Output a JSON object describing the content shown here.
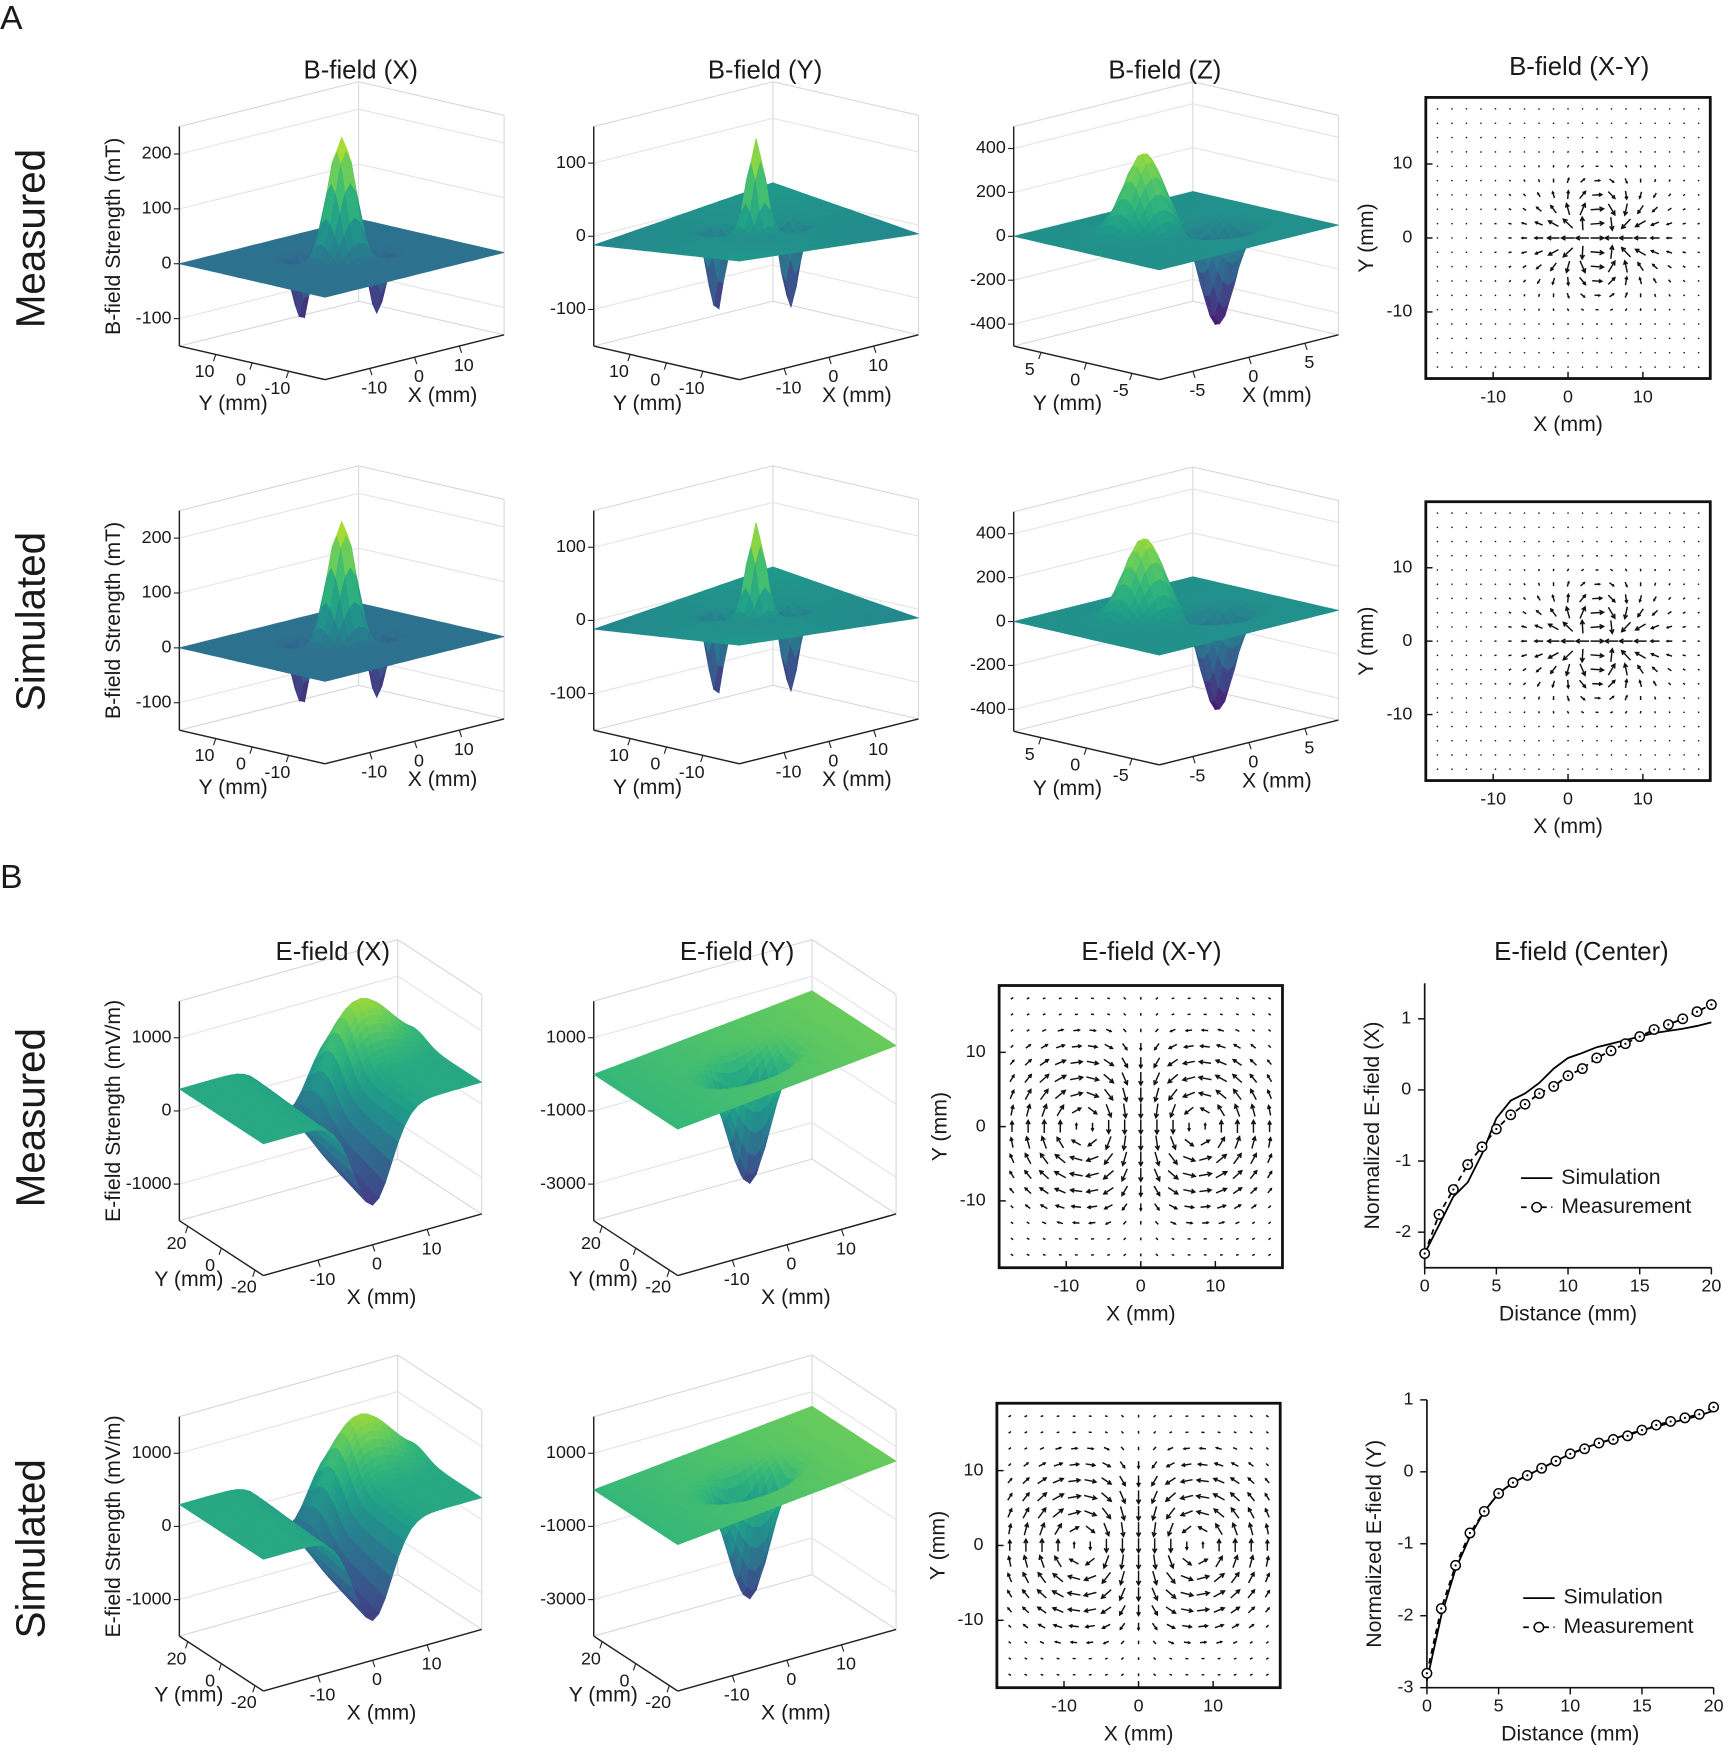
{
  "sections": [
    {
      "label": "A",
      "rows": [
        "Measured",
        "Simulated"
      ]
    },
    {
      "label": "B",
      "rows": [
        "Measured",
        "Simulated"
      ]
    }
  ],
  "chart_data": [
    {
      "type": "surface",
      "title": "B-field (X)",
      "zlabel": "B-field Strength (mT)",
      "zlim": [
        -150,
        250
      ],
      "zticks": [
        -100,
        0,
        100,
        200
      ],
      "xlabel": "X (mm)",
      "xlim": [
        -20,
        20
      ],
      "xticks": [
        -10,
        0,
        10
      ],
      "ylabel": "Y (mm)",
      "ylim": [
        -20,
        20
      ],
      "yticks": [
        -10,
        0,
        10
      ]
    },
    {
      "type": "surface",
      "title": "B-field (Y)",
      "zlim": [
        -150,
        150
      ],
      "zticks": [
        -100,
        0,
        100
      ],
      "xlabel": "X (mm)",
      "xlim": [
        -20,
        20
      ],
      "xticks": [
        -10,
        0,
        10
      ],
      "ylabel": "Y (mm)",
      "ylim": [
        -20,
        20
      ],
      "yticks": [
        -10,
        0,
        10
      ]
    },
    {
      "type": "surface",
      "title": "B-field (Z)",
      "zlim": [
        -500,
        500
      ],
      "zticks": [
        -400,
        -200,
        0,
        200,
        400
      ],
      "xlabel": "X (mm)",
      "xlim": [
        -8,
        8
      ],
      "xticks": [
        -5,
        0,
        5
      ],
      "ylabel": "Y (mm)",
      "ylim": [
        -8,
        8
      ],
      "yticks": [
        -5,
        0,
        5
      ]
    },
    {
      "type": "quiver",
      "title": "B-field (X-Y)",
      "xlabel": "X (mm)",
      "ylabel": "Y (mm)",
      "xlim": [
        -19,
        19
      ],
      "ylim": [
        -19,
        19
      ],
      "xticks": [
        -10,
        0,
        10
      ],
      "yticks": [
        -10,
        0,
        10
      ]
    },
    {
      "type": "surface",
      "zlabel": "B-field Strength (mT)",
      "zlim": [
        -150,
        250
      ],
      "zticks": [
        -100,
        0,
        100,
        200
      ],
      "xlabel": "X (mm)",
      "xlim": [
        -20,
        20
      ],
      "xticks": [
        -10,
        0,
        10
      ],
      "ylabel": "Y (mm)",
      "ylim": [
        -20,
        20
      ],
      "yticks": [
        -10,
        0,
        10
      ]
    },
    {
      "type": "surface",
      "zlim": [
        -150,
        150
      ],
      "zticks": [
        -100,
        0,
        100
      ],
      "xlabel": "X (mm)",
      "xlim": [
        -20,
        20
      ],
      "xticks": [
        -10,
        0,
        10
      ],
      "ylabel": "Y (mm)",
      "ylim": [
        -20,
        20
      ],
      "yticks": [
        -10,
        0,
        10
      ]
    },
    {
      "type": "surface",
      "zlim": [
        -500,
        500
      ],
      "zticks": [
        -400,
        -200,
        0,
        200,
        400
      ],
      "xlabel": "X (mm)",
      "xlim": [
        -8,
        8
      ],
      "xticks": [
        -5,
        0,
        5
      ],
      "ylabel": "Y (mm)",
      "ylim": [
        -8,
        8
      ],
      "yticks": [
        -5,
        0,
        5
      ]
    },
    {
      "type": "quiver",
      "xlabel": "X (mm)",
      "ylabel": "Y (mm)",
      "xlim": [
        -19,
        19
      ],
      "ylim": [
        -19,
        19
      ],
      "xticks": [
        -10,
        0,
        10
      ],
      "yticks": [
        -10,
        0,
        10
      ]
    },
    {
      "type": "surface",
      "title": "E-field (X)",
      "zlabel": "E-field Strength (mV/m)",
      "zlim": [
        -1500,
        1500
      ],
      "zticks": [
        -1000,
        0,
        1000
      ],
      "xlabel": "X (mm)",
      "xlim": [
        -20,
        20
      ],
      "xticks": [
        -10,
        0,
        10
      ],
      "ylabel": "Y (mm)",
      "ylim": [
        -25,
        25
      ],
      "yticks": [
        -20,
        0,
        20
      ]
    },
    {
      "type": "surface",
      "title": "E-field (Y)",
      "zlim": [
        -4000,
        2000
      ],
      "zticks": [
        -3000,
        -1000,
        1000
      ],
      "xlabel": "X (mm)",
      "xlim": [
        -20,
        20
      ],
      "xticks": [
        -10,
        0,
        10
      ],
      "ylabel": "Y (mm)",
      "ylim": [
        -25,
        25
      ],
      "yticks": [
        -20,
        0,
        20
      ]
    },
    {
      "type": "quiver",
      "title": "E-field (X-Y)",
      "xlabel": "X (mm)",
      "ylabel": "Y (mm)",
      "xlim": [
        -19,
        19
      ],
      "ylim": [
        -19,
        19
      ],
      "xticks": [
        -10,
        0,
        10
      ],
      "yticks": [
        -10,
        0,
        10
      ]
    },
    {
      "type": "line",
      "title": "E-field (Center)",
      "xlabel": "Distance (mm)",
      "ylabel": "Normalized E-field (X)",
      "x": [
        0,
        1,
        2,
        3,
        4,
        5,
        6,
        7,
        8,
        9,
        10,
        11,
        12,
        13,
        14,
        15,
        16,
        17,
        18,
        19,
        20
      ],
      "xlim": [
        0,
        20
      ],
      "ylim": [
        -2.5,
        1.5
      ],
      "xticks": [
        0,
        5,
        10,
        15,
        20
      ],
      "yticks": [
        -2,
        -1,
        0,
        1
      ],
      "legend": "lower right",
      "series": [
        {
          "name": "Simulation",
          "color": "#000000",
          "style": "solid",
          "values": [
            -2.3,
            -1.9,
            -1.5,
            -1.3,
            -0.9,
            -0.4,
            -0.15,
            -0.05,
            0.1,
            0.3,
            0.45,
            0.52,
            0.6,
            0.65,
            0.7,
            0.75,
            0.8,
            0.83,
            0.86,
            0.9,
            0.95
          ]
        },
        {
          "name": "Measurement",
          "color": "#000000",
          "style": "dashed",
          "marker": "circle",
          "values": [
            -2.3,
            -1.75,
            -1.4,
            -1.05,
            -0.8,
            -0.55,
            -0.35,
            -0.2,
            -0.05,
            0.05,
            0.2,
            0.3,
            0.45,
            0.55,
            0.65,
            0.75,
            0.85,
            0.92,
            1.0,
            1.1,
            1.2
          ]
        }
      ]
    },
    {
      "type": "surface",
      "zlabel": "E-field Strength (mV/m)",
      "zlim": [
        -1500,
        1500
      ],
      "zticks": [
        -1000,
        0,
        1000
      ],
      "xlabel": "X (mm)",
      "xlim": [
        -20,
        20
      ],
      "xticks": [
        -10,
        0,
        10
      ],
      "ylabel": "Y (mm)",
      "ylim": [
        -25,
        25
      ],
      "yticks": [
        -20,
        0,
        20
      ]
    },
    {
      "type": "surface",
      "zlim": [
        -4000,
        2000
      ],
      "zticks": [
        -3000,
        -1000,
        1000
      ],
      "xlabel": "X (mm)",
      "xlim": [
        -20,
        20
      ],
      "xticks": [
        -10,
        0,
        10
      ],
      "ylabel": "Y (mm)",
      "ylim": [
        -25,
        25
      ],
      "yticks": [
        -20,
        0,
        20
      ]
    },
    {
      "type": "quiver",
      "xlabel": "X (mm)",
      "ylabel": "Y (mm)",
      "xlim": [
        -19,
        19
      ],
      "ylim": [
        -19,
        19
      ],
      "xticks": [
        -10,
        0,
        10
      ],
      "yticks": [
        -10,
        0,
        10
      ]
    },
    {
      "type": "line",
      "xlabel": "Distance (mm)",
      "ylabel": "Normalized E-field (Y)",
      "x": [
        0,
        1,
        2,
        3,
        4,
        5,
        6,
        7,
        8,
        9,
        10,
        11,
        12,
        13,
        14,
        15,
        16,
        17,
        18,
        19,
        20
      ],
      "xlim": [
        0,
        20
      ],
      "ylim": [
        -3,
        1
      ],
      "xticks": [
        0,
        5,
        10,
        15,
        20
      ],
      "yticks": [
        -3,
        -2,
        -1,
        0,
        1
      ],
      "legend": "lower right",
      "series": [
        {
          "name": "Simulation",
          "color": "#000000",
          "style": "solid",
          "values": [
            -2.9,
            -2.0,
            -1.35,
            -0.9,
            -0.55,
            -0.3,
            -0.15,
            -0.05,
            0.05,
            0.15,
            0.25,
            0.33,
            0.4,
            0.46,
            0.52,
            0.58,
            0.63,
            0.68,
            0.73,
            0.78,
            0.85
          ]
        },
        {
          "name": "Measurement",
          "color": "#000000",
          "style": "dashed",
          "marker": "circle",
          "values": [
            -2.8,
            -1.9,
            -1.3,
            -0.85,
            -0.55,
            -0.3,
            -0.15,
            -0.05,
            0.05,
            0.15,
            0.25,
            0.32,
            0.4,
            0.45,
            0.5,
            0.58,
            0.65,
            0.7,
            0.75,
            0.8,
            0.9
          ]
        }
      ]
    }
  ]
}
